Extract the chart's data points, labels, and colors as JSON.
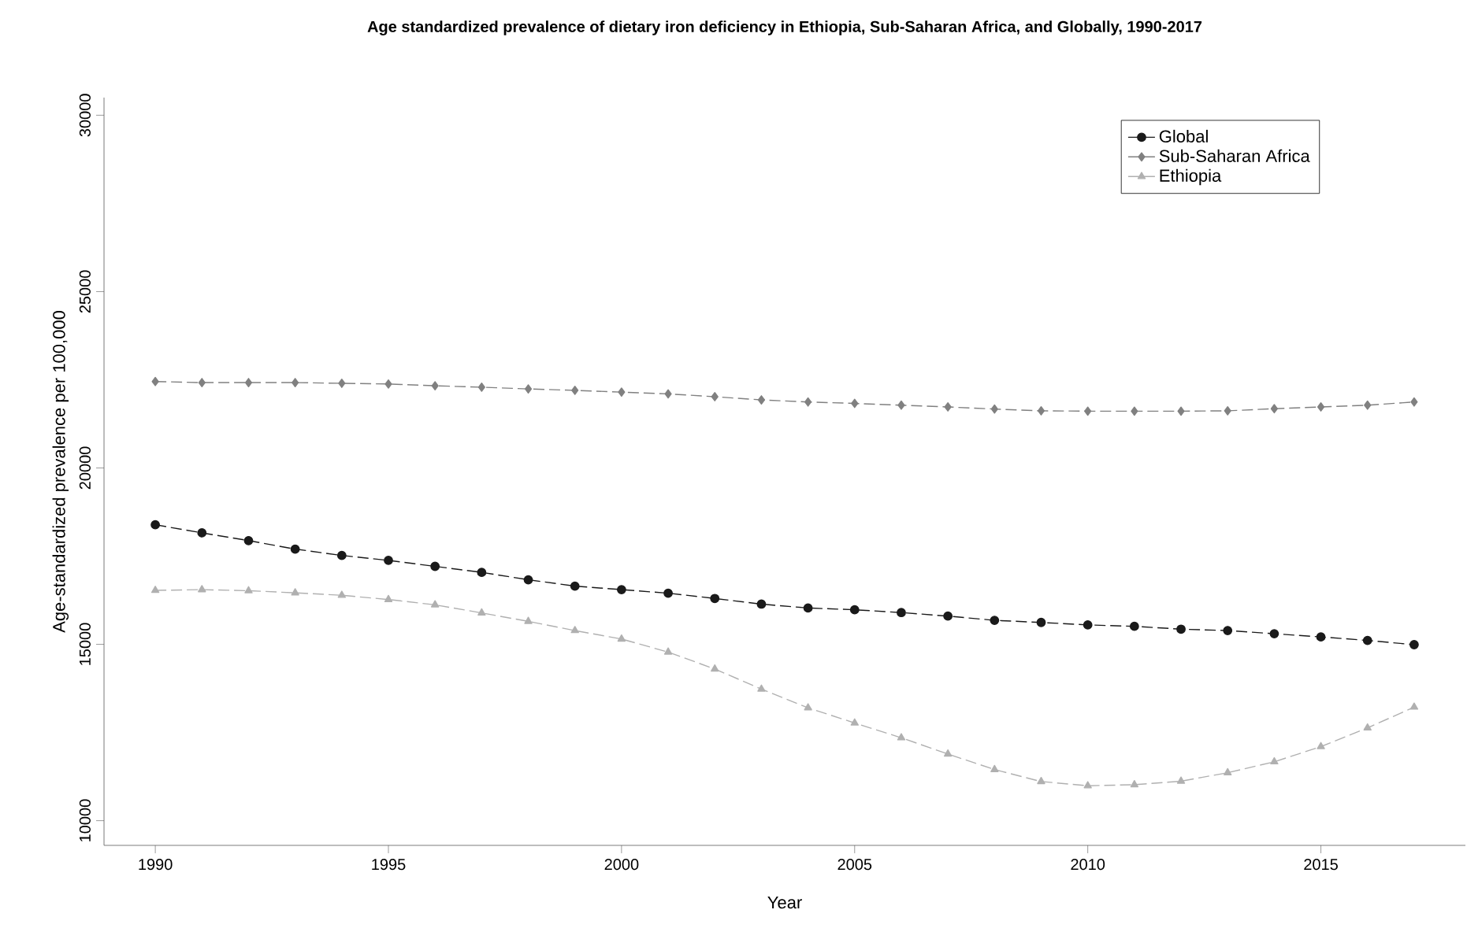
{
  "chart_data": {
    "type": "line",
    "title": "Age standardized prevalence of dietary iron deficiency in Ethiopia, Sub-Saharan Africa, and Globally, 1990-2017",
    "xlabel": "Year",
    "ylabel": "Age-standardized prevalence per 100,000",
    "x": [
      1990,
      1991,
      1992,
      1993,
      1994,
      1995,
      1996,
      1997,
      1998,
      1999,
      2000,
      2001,
      2002,
      2003,
      2004,
      2005,
      2006,
      2007,
      2008,
      2009,
      2010,
      2011,
      2012,
      2013,
      2014,
      2015,
      2016,
      2017
    ],
    "series": [
      {
        "name": "Global",
        "color": "#1a1a1a",
        "marker": "circle",
        "values": [
          18390,
          18160,
          17940,
          17700,
          17520,
          17380,
          17210,
          17040,
          16830,
          16650,
          16550,
          16450,
          16300,
          16140,
          16030,
          15980,
          15900,
          15800,
          15680,
          15620,
          15550,
          15510,
          15430,
          15390,
          15300,
          15210,
          15110,
          14990
        ]
      },
      {
        "name": "Sub-Saharan Africa",
        "color": "#808080",
        "marker": "diamond",
        "values": [
          22450,
          22420,
          22420,
          22420,
          22400,
          22380,
          22330,
          22290,
          22240,
          22200,
          22150,
          22100,
          22020,
          21930,
          21870,
          21830,
          21780,
          21730,
          21670,
          21620,
          21610,
          21610,
          21610,
          21620,
          21680,
          21730,
          21780,
          21870
        ]
      },
      {
        "name": "Ethiopia",
        "color": "#b0b0b0",
        "marker": "triangle",
        "values": [
          16530,
          16550,
          16520,
          16460,
          16390,
          16270,
          16120,
          15890,
          15650,
          15390,
          15150,
          14780,
          14300,
          13730,
          13200,
          12770,
          12350,
          11890,
          11450,
          11110,
          10990,
          11020,
          11120,
          11360,
          11670,
          12100,
          12630,
          13220
        ]
      }
    ],
    "xlim": [
      1988.9,
      2018.1
    ],
    "ylim": [
      9300,
      30500
    ],
    "xticks": [
      1990,
      1995,
      2000,
      2005,
      2010,
      2015
    ],
    "yticks": [
      10000,
      15000,
      20000,
      25000,
      30000
    ],
    "line_style": "dashed",
    "grid": false,
    "legend": "top right"
  }
}
